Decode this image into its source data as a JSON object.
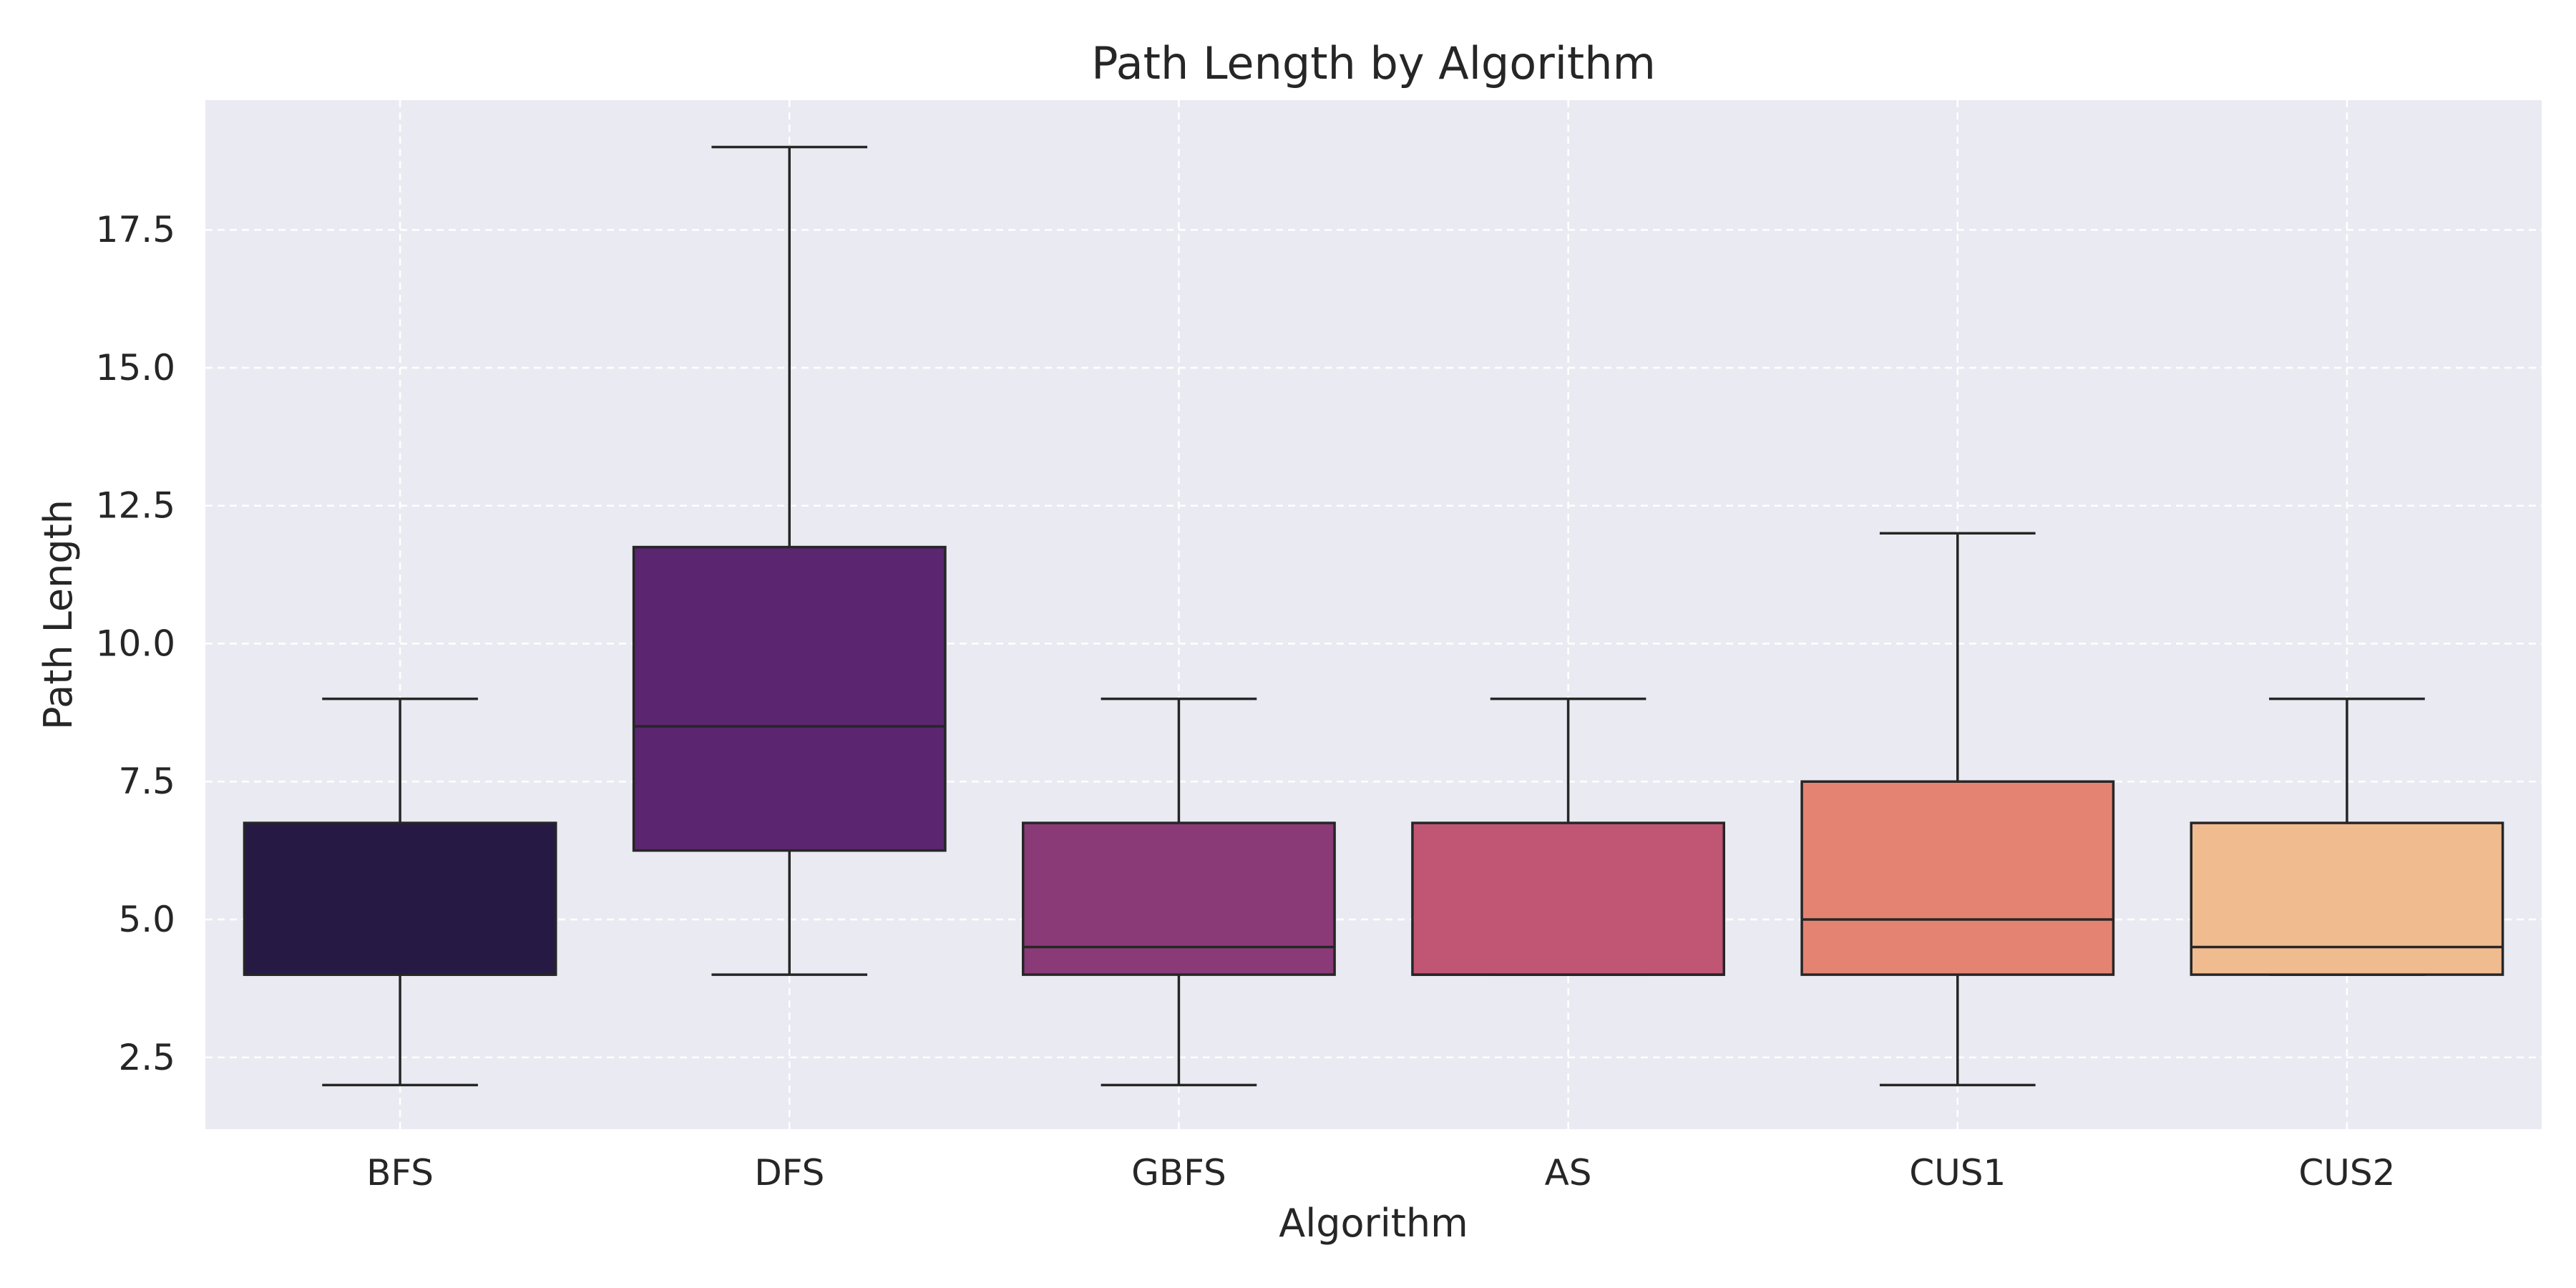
{
  "chart_data": {
    "type": "box",
    "title": "Path Length by Algorithm",
    "xlabel": "Algorithm",
    "ylabel": "Path Length",
    "categories": [
      "BFS",
      "DFS",
      "GBFS",
      "AS",
      "CUS1",
      "CUS2"
    ],
    "boxes": [
      {
        "name": "BFS",
        "whisker_low": 2,
        "q1": 4,
        "median": 4,
        "q3": 6.75,
        "whisker_high": 9,
        "color": "#261a45"
      },
      {
        "name": "DFS",
        "whisker_low": 4,
        "q1": 6.25,
        "median": 8.5,
        "q3": 11.75,
        "whisker_high": 19,
        "color": "#5b2570"
      },
      {
        "name": "GBFS",
        "whisker_low": 2,
        "q1": 4,
        "median": 4.5,
        "q3": 6.75,
        "whisker_high": 9,
        "color": "#8a3a77"
      },
      {
        "name": "AS",
        "whisker_low": 4,
        "q1": 4,
        "median": 4,
        "q3": 6.75,
        "whisker_high": 9,
        "color": "#c05673"
      },
      {
        "name": "CUS1",
        "whisker_low": 2,
        "q1": 4,
        "median": 5,
        "q3": 7.5,
        "whisker_high": 12,
        "color": "#e58372"
      },
      {
        "name": "CUS2",
        "whisker_low": 4,
        "q1": 4,
        "median": 4.5,
        "q3": 6.75,
        "whisker_high": 9,
        "color": "#f0bb8f"
      }
    ],
    "ylim": [
      1.2,
      19.85
    ],
    "yticks": [
      2.5,
      5.0,
      7.5,
      10.0,
      12.5,
      15.0,
      17.5
    ],
    "ytick_labels": [
      "2.5",
      "5.0",
      "7.5",
      "10.0",
      "12.5",
      "15.0",
      "17.5"
    ],
    "grid": true,
    "grid_style": "dashed",
    "background_color": "#eaeaf2",
    "grid_color": "#ffffff",
    "line_color": "#262626"
  }
}
